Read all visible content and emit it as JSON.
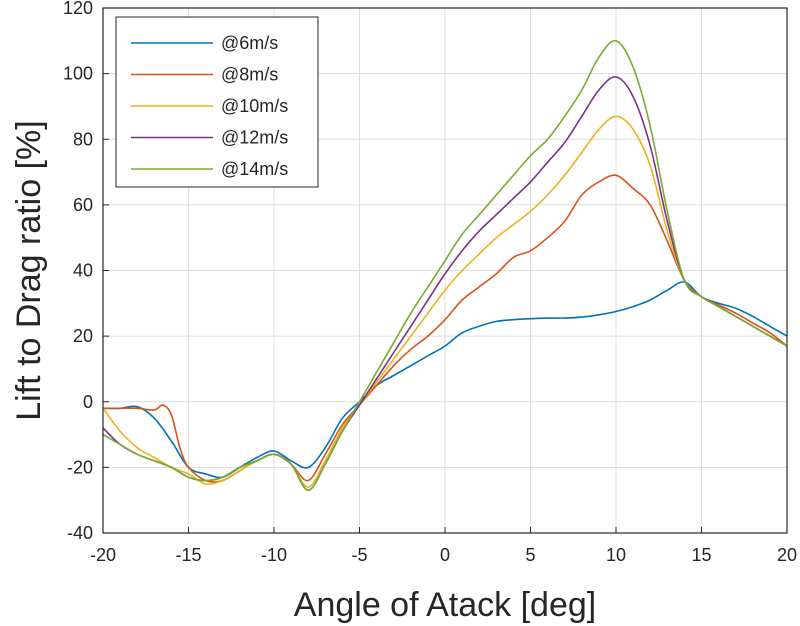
{
  "chart_data": {
    "type": "line",
    "title": "",
    "xlabel": "Angle of Atack [deg]",
    "ylabel": "Lift to Drag ratio [%]",
    "xlim": [
      -20,
      20
    ],
    "ylim": [
      -40,
      120
    ],
    "xticks": [
      -20,
      -15,
      -10,
      -5,
      0,
      5,
      10,
      15,
      20
    ],
    "yticks": [
      -40,
      -20,
      0,
      20,
      40,
      60,
      80,
      100,
      120
    ],
    "grid": true,
    "legend_position": "top-left",
    "series": [
      {
        "name": "@6m/s",
        "color": "#0072BD",
        "points": [
          [
            -20,
            -2
          ],
          [
            -19,
            -2
          ],
          [
            -18,
            -1.5
          ],
          [
            -17,
            -5
          ],
          [
            -16,
            -12
          ],
          [
            -15,
            -20
          ],
          [
            -14,
            -22
          ],
          [
            -13,
            -23
          ],
          [
            -12,
            -20
          ],
          [
            -11,
            -17
          ],
          [
            -10,
            -15
          ],
          [
            -9,
            -18
          ],
          [
            -8,
            -20
          ],
          [
            -7,
            -14
          ],
          [
            -6,
            -5
          ],
          [
            -5,
            0
          ],
          [
            -4,
            5
          ],
          [
            -3,
            8
          ],
          [
            -2,
            11
          ],
          [
            -1,
            14
          ],
          [
            0,
            17
          ],
          [
            1,
            21
          ],
          [
            2,
            23
          ],
          [
            3,
            24.5
          ],
          [
            4,
            25
          ],
          [
            5,
            25.3
          ],
          [
            6,
            25.5
          ],
          [
            7,
            25.5
          ],
          [
            8,
            25.8
          ],
          [
            9,
            26.5
          ],
          [
            10,
            27.5
          ],
          [
            11,
            29
          ],
          [
            12,
            31
          ],
          [
            13,
            34
          ],
          [
            14,
            36.5
          ],
          [
            15,
            32
          ],
          [
            16,
            30
          ],
          [
            17,
            28.5
          ],
          [
            18,
            26
          ],
          [
            19,
            23
          ],
          [
            20,
            20
          ]
        ]
      },
      {
        "name": "@8m/s",
        "color": "#D95319",
        "points": [
          [
            -20,
            -2
          ],
          [
            -19,
            -2
          ],
          [
            -18,
            -2
          ],
          [
            -17,
            -2.5
          ],
          [
            -16.5,
            -1
          ],
          [
            -16,
            -4
          ],
          [
            -15.5,
            -14
          ],
          [
            -15,
            -20
          ],
          [
            -14,
            -24
          ],
          [
            -13,
            -24
          ],
          [
            -12,
            -21
          ],
          [
            -11,
            -18
          ],
          [
            -10,
            -16
          ],
          [
            -9,
            -19
          ],
          [
            -8,
            -24
          ],
          [
            -7,
            -16
          ],
          [
            -6,
            -7
          ],
          [
            -5,
            -1
          ],
          [
            -4,
            5
          ],
          [
            -3,
            11
          ],
          [
            -2,
            16
          ],
          [
            -1,
            20
          ],
          [
            0,
            25
          ],
          [
            1,
            31
          ],
          [
            2,
            35
          ],
          [
            3,
            39
          ],
          [
            4,
            44
          ],
          [
            5,
            46
          ],
          [
            6,
            50
          ],
          [
            7,
            55
          ],
          [
            8,
            63
          ],
          [
            9,
            67
          ],
          [
            10,
            69
          ],
          [
            11,
            65
          ],
          [
            12,
            60
          ],
          [
            13,
            49
          ],
          [
            14,
            37
          ],
          [
            15,
            32
          ],
          [
            16,
            29.5
          ],
          [
            17,
            27
          ],
          [
            18,
            24
          ],
          [
            19,
            21
          ],
          [
            20,
            17
          ]
        ]
      },
      {
        "name": "@10m/s",
        "color": "#EDB120",
        "points": [
          [
            -20,
            -2
          ],
          [
            -19,
            -9
          ],
          [
            -18,
            -14
          ],
          [
            -17,
            -17
          ],
          [
            -16,
            -20
          ],
          [
            -15,
            -22
          ],
          [
            -14,
            -25
          ],
          [
            -13,
            -24
          ],
          [
            -12,
            -21
          ],
          [
            -11,
            -18
          ],
          [
            -10,
            -16
          ],
          [
            -9,
            -19
          ],
          [
            -8,
            -26
          ],
          [
            -7,
            -18
          ],
          [
            -6,
            -8
          ],
          [
            -5,
            -1
          ],
          [
            -4,
            6
          ],
          [
            -3,
            13
          ],
          [
            -2,
            20
          ],
          [
            -1,
            27
          ],
          [
            0,
            34
          ],
          [
            1,
            40
          ],
          [
            2,
            45
          ],
          [
            3,
            50
          ],
          [
            4,
            54
          ],
          [
            5,
            58
          ],
          [
            6,
            63
          ],
          [
            7,
            69
          ],
          [
            8,
            76
          ],
          [
            9,
            83
          ],
          [
            10,
            87
          ],
          [
            11,
            83
          ],
          [
            12,
            72
          ],
          [
            13,
            52
          ],
          [
            14,
            37
          ],
          [
            15,
            32
          ],
          [
            16,
            29
          ],
          [
            17,
            26
          ],
          [
            18,
            23
          ],
          [
            19,
            20
          ],
          [
            20,
            17
          ]
        ]
      },
      {
        "name": "@12m/s",
        "color": "#7E2F8E",
        "points": [
          [
            -20,
            -8
          ],
          [
            -19,
            -13
          ],
          [
            -18,
            -16
          ],
          [
            -17,
            -18
          ],
          [
            -16,
            -20
          ],
          [
            -15,
            -23
          ],
          [
            -14,
            -24
          ],
          [
            -13,
            -23
          ],
          [
            -12,
            -20
          ],
          [
            -11,
            -18
          ],
          [
            -10,
            -16
          ],
          [
            -9,
            -19
          ],
          [
            -8,
            -27
          ],
          [
            -7,
            -19
          ],
          [
            -6,
            -9
          ],
          [
            -5,
            -1
          ],
          [
            -4,
            7
          ],
          [
            -3,
            15
          ],
          [
            -2,
            23
          ],
          [
            -1,
            31
          ],
          [
            0,
            39
          ],
          [
            1,
            46
          ],
          [
            2,
            52
          ],
          [
            3,
            57
          ],
          [
            4,
            62
          ],
          [
            5,
            67
          ],
          [
            6,
            73
          ],
          [
            7,
            79
          ],
          [
            8,
            87
          ],
          [
            9,
            95
          ],
          [
            10,
            99
          ],
          [
            11,
            93
          ],
          [
            12,
            78
          ],
          [
            13,
            55
          ],
          [
            14,
            37
          ],
          [
            15,
            32
          ],
          [
            16,
            29
          ],
          [
            17,
            26
          ],
          [
            18,
            23
          ],
          [
            19,
            20
          ],
          [
            20,
            17
          ]
        ]
      },
      {
        "name": "@14m/s",
        "color": "#77AC30",
        "points": [
          [
            -20,
            -10
          ],
          [
            -19,
            -13
          ],
          [
            -18,
            -16
          ],
          [
            -17,
            -18
          ],
          [
            -16,
            -20
          ],
          [
            -15,
            -23
          ],
          [
            -14,
            -24
          ],
          [
            -13,
            -23
          ],
          [
            -12,
            -20
          ],
          [
            -11,
            -18
          ],
          [
            -10,
            -16
          ],
          [
            -9,
            -19
          ],
          [
            -8,
            -27
          ],
          [
            -7,
            -19
          ],
          [
            -6,
            -9
          ],
          [
            -5,
            0
          ],
          [
            -4,
            9
          ],
          [
            -3,
            18
          ],
          [
            -2,
            27
          ],
          [
            -1,
            35
          ],
          [
            0,
            43
          ],
          [
            1,
            51
          ],
          [
            2,
            57
          ],
          [
            3,
            63
          ],
          [
            4,
            69
          ],
          [
            5,
            75
          ],
          [
            6,
            80
          ],
          [
            7,
            87
          ],
          [
            8,
            95
          ],
          [
            9,
            105
          ],
          [
            10,
            110
          ],
          [
            11,
            102
          ],
          [
            12,
            84
          ],
          [
            13,
            58
          ],
          [
            14,
            37
          ],
          [
            15,
            32
          ],
          [
            16,
            29
          ],
          [
            17,
            26
          ],
          [
            18,
            23
          ],
          [
            19,
            20
          ],
          [
            20,
            17
          ]
        ]
      }
    ]
  }
}
